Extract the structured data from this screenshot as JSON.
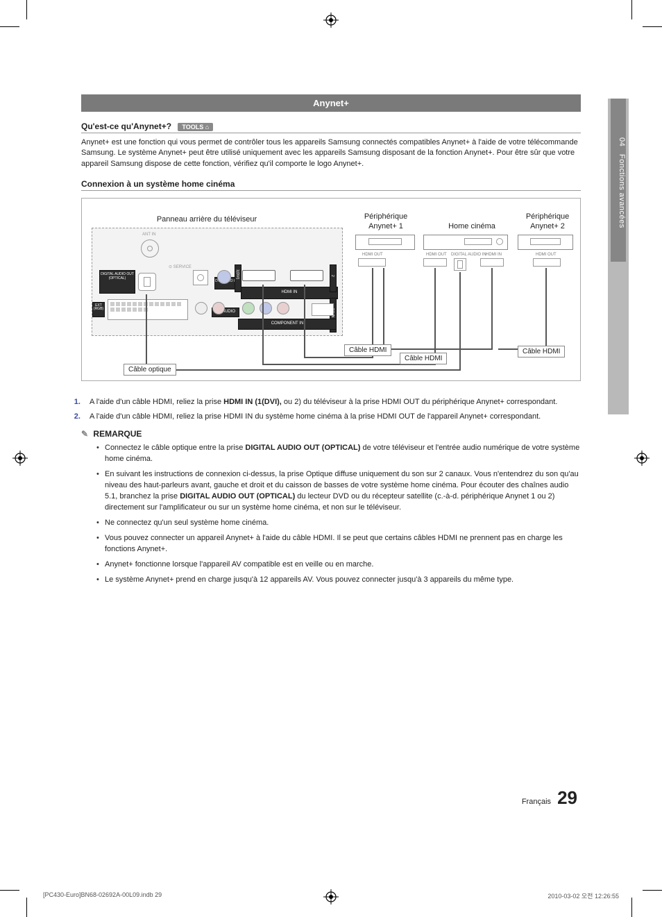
{
  "side_tab": {
    "num": "04",
    "label": "Fonctions avancées"
  },
  "section_header": "Anynet+",
  "heading1": {
    "text": "Qu'est-ce qu'Anynet+?",
    "badge": "TOOLS ⌂"
  },
  "intro": "Anynet+ est une fonction qui vous permet de contrôler tous les appareils Samsung connectés compatibles Anynet+ à l'aide de votre télécommande Samsung. Le système Anynet+ peut être utilisé uniquement avec les appareils Samsung disposant de la fonction Anynet+. Pour être sûr que votre appareil Samsung dispose de cette fonction, vérifiez qu'il comporte le logo Anynet+.",
  "heading2": "Connexion à un système home cinéma",
  "diagram": {
    "labels": {
      "tv": "Panneau arrière du téléviseur",
      "anynet1_top": "Périphérique",
      "anynet1_bot": "Anynet+ 1",
      "home": "Home cinéma",
      "anynet2_top": "Périphérique",
      "anynet2_bot": "Anynet+ 2",
      "ant_in": "ANT IN",
      "service": "⊙ SERVICE",
      "digital_audio": "DIGITAL AUDIO OUT (OPTICAL)",
      "dvi_audio": "DVI AUDIO IN",
      "hdmi_in": "HDMI IN",
      "component_in": "COMPONENT IN",
      "pc_in": "PC IN",
      "audio": "♫ : AUDIO",
      "hdmi_out": "HDMI OUT",
      "digital_audio_in": "DIGITAL AUDIO IN",
      "hdmi_in_small": "HDMI IN",
      "ext_rgb": "EXT (RGB)"
    },
    "cables": {
      "optical": "Câble optique",
      "hdmi": "Câble HDMI"
    }
  },
  "steps": [
    "A l'aide d'un câble HDMI, reliez la prise <b>HDMI IN (1(DVI),</b> ou 2) du téléviseur à la prise HDMI OUT du périphérique Anynet+ correspondant.",
    "A l'aide d'un câble HDMI, reliez la prise HDMI IN du système home cinéma à la prise HDMI OUT de l'appareil Anynet+ correspondant."
  ],
  "remarque_title": "REMARQUE",
  "notes": [
    "Connectez le câble optique entre la prise <b>DIGITAL AUDIO OUT (OPTICAL)</b> de votre téléviseur et l'entrée audio numérique de votre système home cinéma.",
    "En suivant les instructions de connexion ci-dessus, la prise Optique diffuse uniquement du son sur 2 canaux. Vous n'entendrez du son qu'au niveau des haut-parleurs avant, gauche et droit et du caisson de basses de votre système home cinéma. Pour écouter des chaînes audio 5.1, branchez la prise <b>DIGITAL AUDIO OUT (OPTICAL)</b> du lecteur DVD ou du récepteur satellite (c.-à-d. périphérique Anynet 1 ou 2) directement sur l'amplificateur ou sur un système home cinéma, et non sur le téléviseur.",
    "Ne connectez qu'un seul système home cinéma.",
    "Vous pouvez connecter un appareil Anynet+ à l'aide du câble HDMI. Il se peut que certains câbles HDMI ne prennent pas en charge les fonctions Anynet+.",
    "Anynet+ fonctionne lorsque l'appareil AV compatible est en veille ou en marche.",
    "Le système Anynet+ prend en charge jusqu'à 12 appareils AV. Vous pouvez connecter jusqu'à 3 appareils du même type."
  ],
  "footer": {
    "lang": "Français",
    "page": "29"
  },
  "print": {
    "file": "[PC430-Euro]BN68-02692A-00L09.indb   29",
    "timestamp": "2010-03-02   오전 12:26:55"
  },
  "colors": {
    "section_bg": "#7a7a7a",
    "tab_bg": "#b9b9b9",
    "tab_inner": "#868686",
    "step_marker": "#3a4aa0"
  }
}
